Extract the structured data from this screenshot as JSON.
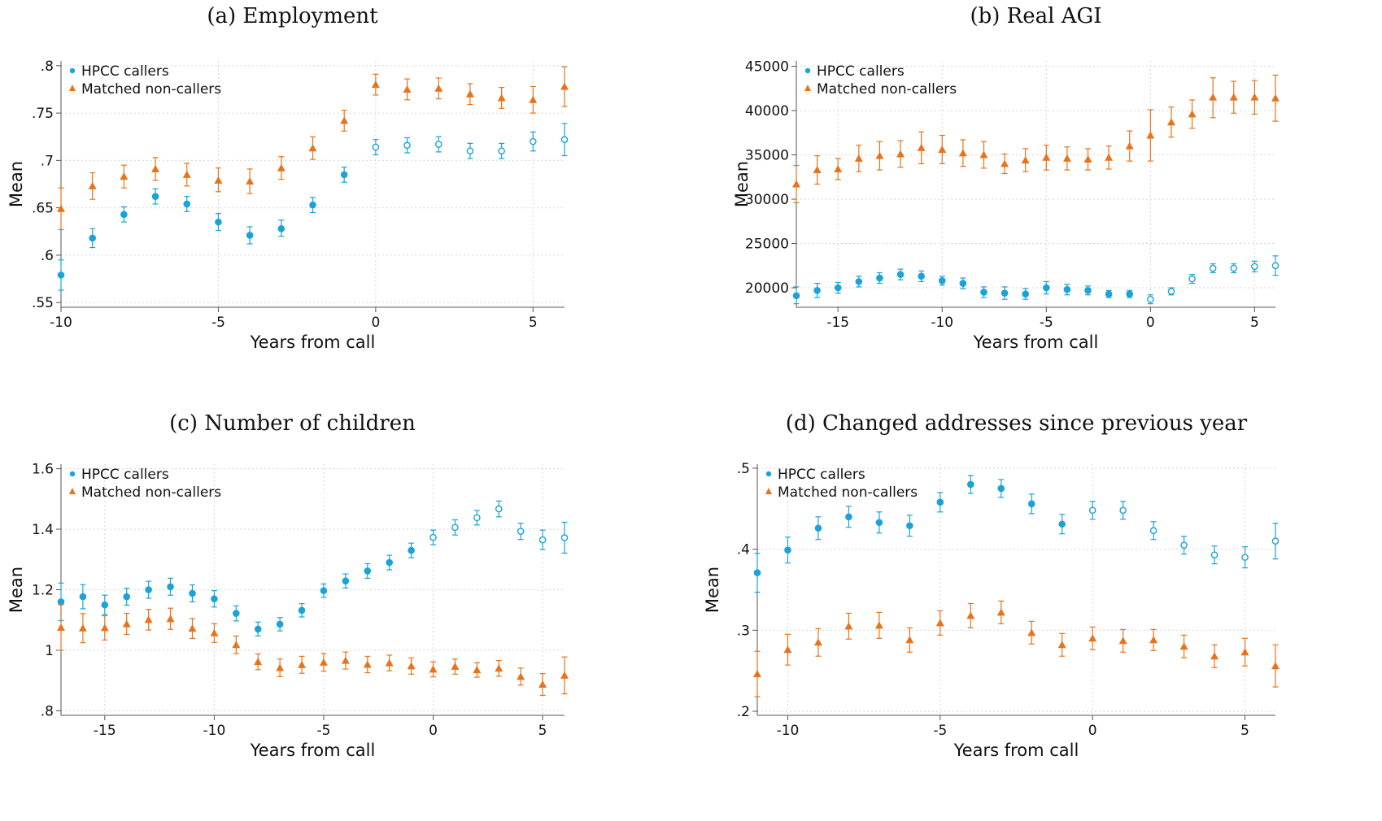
{
  "colors": {
    "callers": "#1aa3d9",
    "non_callers": "#e8731a"
  },
  "legend": {
    "callers": "HPCC callers",
    "non_callers": "Matched non-callers"
  },
  "chart_data": [
    {
      "id": "a",
      "type": "scatter",
      "title": "(a) Employment",
      "xlabel": "Years from call",
      "ylabel": "Mean",
      "xlim": [
        -10,
        6
      ],
      "ylim": [
        0.545,
        0.805
      ],
      "xticks": [
        -10,
        -5,
        0,
        5
      ],
      "xtick_labels": [
        "-10",
        "-5",
        "0",
        "5"
      ],
      "yticks": [
        0.55,
        0.6,
        0.65,
        0.7,
        0.75,
        0.8
      ],
      "ytick_labels": [
        ".55",
        ".6",
        ".65",
        ".7",
        ".75",
        ".8"
      ],
      "legend_position": "top-left",
      "series": [
        {
          "name": "HPCC callers",
          "marker": "circle",
          "hollow_from_x": 0,
          "x": [
            -10,
            -9,
            -8,
            -7,
            -6,
            -5,
            -4,
            -3,
            -2,
            -1,
            0,
            1,
            2,
            3,
            4,
            5,
            6
          ],
          "y": [
            0.579,
            0.618,
            0.643,
            0.662,
            0.654,
            0.635,
            0.621,
            0.628,
            0.653,
            0.685,
            0.714,
            0.716,
            0.717,
            0.71,
            0.71,
            0.72,
            0.722
          ],
          "lo": [
            0.563,
            0.608,
            0.635,
            0.654,
            0.646,
            0.626,
            0.612,
            0.62,
            0.645,
            0.677,
            0.706,
            0.708,
            0.709,
            0.702,
            0.702,
            0.71,
            0.705
          ],
          "hi": [
            0.595,
            0.628,
            0.651,
            0.67,
            0.662,
            0.644,
            0.63,
            0.637,
            0.661,
            0.693,
            0.722,
            0.724,
            0.725,
            0.718,
            0.718,
            0.73,
            0.739
          ]
        },
        {
          "name": "Matched non-callers",
          "marker": "triangle",
          "x": [
            -10,
            -9,
            -8,
            -7,
            -6,
            -5,
            -4,
            -3,
            -2,
            -1,
            0,
            1,
            2,
            3,
            4,
            5,
            6
          ],
          "y": [
            0.649,
            0.673,
            0.683,
            0.691,
            0.685,
            0.679,
            0.678,
            0.692,
            0.713,
            0.742,
            0.78,
            0.775,
            0.776,
            0.77,
            0.766,
            0.764,
            0.778
          ],
          "lo": [
            0.627,
            0.659,
            0.671,
            0.679,
            0.673,
            0.667,
            0.665,
            0.68,
            0.701,
            0.731,
            0.769,
            0.764,
            0.765,
            0.759,
            0.755,
            0.75,
            0.757
          ],
          "hi": [
            0.671,
            0.687,
            0.695,
            0.703,
            0.697,
            0.692,
            0.691,
            0.704,
            0.725,
            0.753,
            0.791,
            0.786,
            0.787,
            0.781,
            0.777,
            0.778,
            0.799
          ]
        }
      ]
    },
    {
      "id": "b",
      "type": "scatter",
      "title": "(b) Real AGI",
      "xlabel": "Years from call",
      "ylabel": "Mean",
      "xlim": [
        -17,
        6
      ],
      "ylim": [
        17800,
        45600
      ],
      "xticks": [
        -15,
        -10,
        -5,
        0,
        5
      ],
      "xtick_labels": [
        "-15",
        "-10",
        "-5",
        "0",
        "5"
      ],
      "yticks": [
        20000,
        25000,
        30000,
        35000,
        40000,
        45000
      ],
      "ytick_labels": [
        "20000",
        "25000",
        "30000",
        "35000",
        "40000",
        "45000"
      ],
      "legend_position": "top-left",
      "series": [
        {
          "name": "HPCC callers",
          "marker": "circle",
          "hollow_from_x": 0,
          "x": [
            -17,
            -16,
            -15,
            -14,
            -13,
            -12,
            -11,
            -10,
            -9,
            -8,
            -7,
            -6,
            -5,
            -4,
            -3,
            -2,
            -1,
            0,
            1,
            2,
            3,
            4,
            5,
            6
          ],
          "y": [
            19100,
            19700,
            20000,
            20700,
            21100,
            21500,
            21300,
            20800,
            20500,
            19500,
            19400,
            19300,
            20000,
            19800,
            19700,
            19300,
            19300,
            18700,
            19600,
            21000,
            22200,
            22200,
            22400,
            22500
          ],
          "lo": [
            18200,
            18900,
            19400,
            20100,
            20500,
            20900,
            20700,
            20300,
            19900,
            18900,
            18700,
            18700,
            19300,
            19200,
            19200,
            18900,
            18900,
            18200,
            19200,
            20500,
            21700,
            21700,
            21800,
            21400
          ],
          "hi": [
            20100,
            20500,
            20600,
            21300,
            21700,
            22100,
            21900,
            21300,
            21100,
            20100,
            20100,
            19900,
            20700,
            20400,
            20200,
            19700,
            19700,
            19200,
            20000,
            21500,
            22700,
            22700,
            23000,
            23600
          ]
        },
        {
          "name": "Matched non-callers",
          "marker": "triangle",
          "x": [
            -17,
            -16,
            -15,
            -14,
            -13,
            -12,
            -11,
            -10,
            -9,
            -8,
            -7,
            -6,
            -5,
            -4,
            -3,
            -2,
            -1,
            0,
            1,
            2,
            3,
            4,
            5,
            6
          ],
          "y": [
            31700,
            33300,
            33400,
            34600,
            34900,
            35100,
            35800,
            35600,
            35200,
            35000,
            34000,
            34400,
            34700,
            34600,
            34500,
            34700,
            36000,
            37200,
            38700,
            39600,
            41500,
            41500,
            41500,
            41400
          ],
          "lo": [
            29600,
            31700,
            32200,
            33100,
            33300,
            33600,
            34000,
            34000,
            33700,
            33500,
            32900,
            33100,
            33300,
            33300,
            33300,
            33400,
            34300,
            34300,
            37000,
            38000,
            39200,
            39700,
            39600,
            38800
          ],
          "hi": [
            33800,
            34900,
            34600,
            36100,
            36500,
            36600,
            37600,
            37200,
            36700,
            36500,
            35100,
            35700,
            36100,
            35900,
            35700,
            36000,
            37700,
            40100,
            40400,
            41200,
            43700,
            43300,
            43400,
            44000
          ]
        }
      ]
    },
    {
      "id": "c",
      "type": "scatter",
      "title": "(c) Number of children",
      "xlabel": "Years from call",
      "ylabel": "Mean",
      "xlim": [
        -17,
        6
      ],
      "ylim": [
        0.785,
        1.615
      ],
      "xticks": [
        -15,
        -10,
        -5,
        0,
        5
      ],
      "xtick_labels": [
        "-15",
        "-10",
        "-5",
        "0",
        "5"
      ],
      "yticks": [
        0.8,
        1.0,
        1.2,
        1.4,
        1.6
      ],
      "ytick_labels": [
        ".8",
        "1",
        "1.2",
        "1.4",
        "1.6"
      ],
      "legend_position": "top-left",
      "series": [
        {
          "name": "HPCC callers",
          "marker": "circle",
          "hollow_from_x": 0,
          "x": [
            -17,
            -16,
            -15,
            -14,
            -13,
            -12,
            -11,
            -10,
            -9,
            -8,
            -7,
            -6,
            -5,
            -4,
            -3,
            -2,
            -1,
            0,
            1,
            2,
            3,
            4,
            5,
            6
          ],
          "y": [
            1.16,
            1.177,
            1.15,
            1.177,
            1.2,
            1.21,
            1.188,
            1.17,
            1.122,
            1.07,
            1.086,
            1.132,
            1.197,
            1.229,
            1.262,
            1.29,
            1.33,
            1.373,
            1.406,
            1.438,
            1.467,
            1.393,
            1.365,
            1.372
          ],
          "lo": [
            1.098,
            1.137,
            1.118,
            1.149,
            1.172,
            1.182,
            1.16,
            1.143,
            1.097,
            1.047,
            1.064,
            1.11,
            1.175,
            1.206,
            1.238,
            1.266,
            1.306,
            1.349,
            1.381,
            1.414,
            1.441,
            1.366,
            1.333,
            1.321
          ],
          "hi": [
            1.222,
            1.217,
            1.182,
            1.205,
            1.228,
            1.238,
            1.216,
            1.197,
            1.147,
            1.093,
            1.108,
            1.154,
            1.219,
            1.252,
            1.286,
            1.314,
            1.354,
            1.397,
            1.431,
            1.462,
            1.493,
            1.42,
            1.397,
            1.423
          ]
        },
        {
          "name": "Matched non-callers",
          "marker": "triangle",
          "x": [
            -17,
            -16,
            -15,
            -14,
            -13,
            -12,
            -11,
            -10,
            -9,
            -8,
            -7,
            -6,
            -5,
            -4,
            -3,
            -2,
            -1,
            0,
            1,
            2,
            3,
            4,
            5,
            6
          ],
          "y": [
            1.075,
            1.073,
            1.074,
            1.087,
            1.101,
            1.104,
            1.072,
            1.057,
            1.018,
            0.962,
            0.942,
            0.952,
            0.96,
            0.966,
            0.953,
            0.958,
            0.948,
            0.937,
            0.946,
            0.935,
            0.94,
            0.913,
            0.887,
            0.917
          ],
          "lo": [
            1.0,
            1.025,
            1.034,
            1.052,
            1.067,
            1.069,
            1.039,
            1.026,
            0.989,
            0.936,
            0.913,
            0.924,
            0.931,
            0.938,
            0.926,
            0.932,
            0.921,
            0.912,
            0.921,
            0.911,
            0.914,
            0.885,
            0.851,
            0.856
          ],
          "hi": [
            1.15,
            1.121,
            1.114,
            1.122,
            1.135,
            1.139,
            1.105,
            1.088,
            1.047,
            0.988,
            0.971,
            0.98,
            0.989,
            0.994,
            0.98,
            0.984,
            0.975,
            0.962,
            0.971,
            0.959,
            0.966,
            0.941,
            0.923,
            0.978
          ]
        }
      ]
    },
    {
      "id": "d",
      "type": "scatter",
      "title": "(d) Changed addresses since previous year",
      "xlabel": "Years from call",
      "ylabel": "Mean",
      "xlim": [
        -11,
        6
      ],
      "ylim": [
        0.195,
        0.505
      ],
      "xticks": [
        -10,
        -5,
        0,
        5
      ],
      "xtick_labels": [
        "-10",
        "-5",
        "0",
        "5"
      ],
      "yticks": [
        0.2,
        0.3,
        0.4,
        0.5
      ],
      "ytick_labels": [
        ".2",
        ".3",
        ".4",
        ".5"
      ],
      "legend_position": "top-left",
      "series": [
        {
          "name": "HPCC callers",
          "marker": "circle",
          "hollow_from_x": 0,
          "x": [
            -11,
            -10,
            -9,
            -8,
            -7,
            -6,
            -5,
            -4,
            -3,
            -2,
            -1,
            0,
            1,
            2,
            3,
            4,
            5,
            6
          ],
          "y": [
            0.371,
            0.399,
            0.426,
            0.44,
            0.433,
            0.429,
            0.458,
            0.48,
            0.475,
            0.456,
            0.431,
            0.448,
            0.448,
            0.423,
            0.405,
            0.393,
            0.39,
            0.41
          ],
          "lo": [
            0.347,
            0.383,
            0.412,
            0.427,
            0.42,
            0.416,
            0.446,
            0.469,
            0.464,
            0.444,
            0.419,
            0.437,
            0.437,
            0.412,
            0.394,
            0.382,
            0.377,
            0.388
          ],
          "hi": [
            0.395,
            0.415,
            0.44,
            0.453,
            0.446,
            0.442,
            0.47,
            0.491,
            0.486,
            0.468,
            0.443,
            0.459,
            0.459,
            0.434,
            0.416,
            0.404,
            0.403,
            0.432
          ]
        },
        {
          "name": "Matched non-callers",
          "marker": "triangle",
          "x": [
            -11,
            -10,
            -9,
            -8,
            -7,
            -6,
            -5,
            -4,
            -3,
            -2,
            -1,
            0,
            1,
            2,
            3,
            4,
            5,
            6
          ],
          "y": [
            0.246,
            0.276,
            0.285,
            0.305,
            0.306,
            0.288,
            0.309,
            0.318,
            0.322,
            0.297,
            0.282,
            0.29,
            0.287,
            0.288,
            0.28,
            0.268,
            0.273,
            0.256
          ],
          "lo": [
            0.218,
            0.257,
            0.268,
            0.289,
            0.29,
            0.273,
            0.294,
            0.303,
            0.308,
            0.283,
            0.268,
            0.276,
            0.273,
            0.275,
            0.266,
            0.254,
            0.256,
            0.23
          ],
          "hi": [
            0.274,
            0.295,
            0.302,
            0.321,
            0.322,
            0.303,
            0.324,
            0.333,
            0.336,
            0.311,
            0.296,
            0.304,
            0.301,
            0.301,
            0.294,
            0.282,
            0.29,
            0.282
          ]
        }
      ]
    }
  ]
}
